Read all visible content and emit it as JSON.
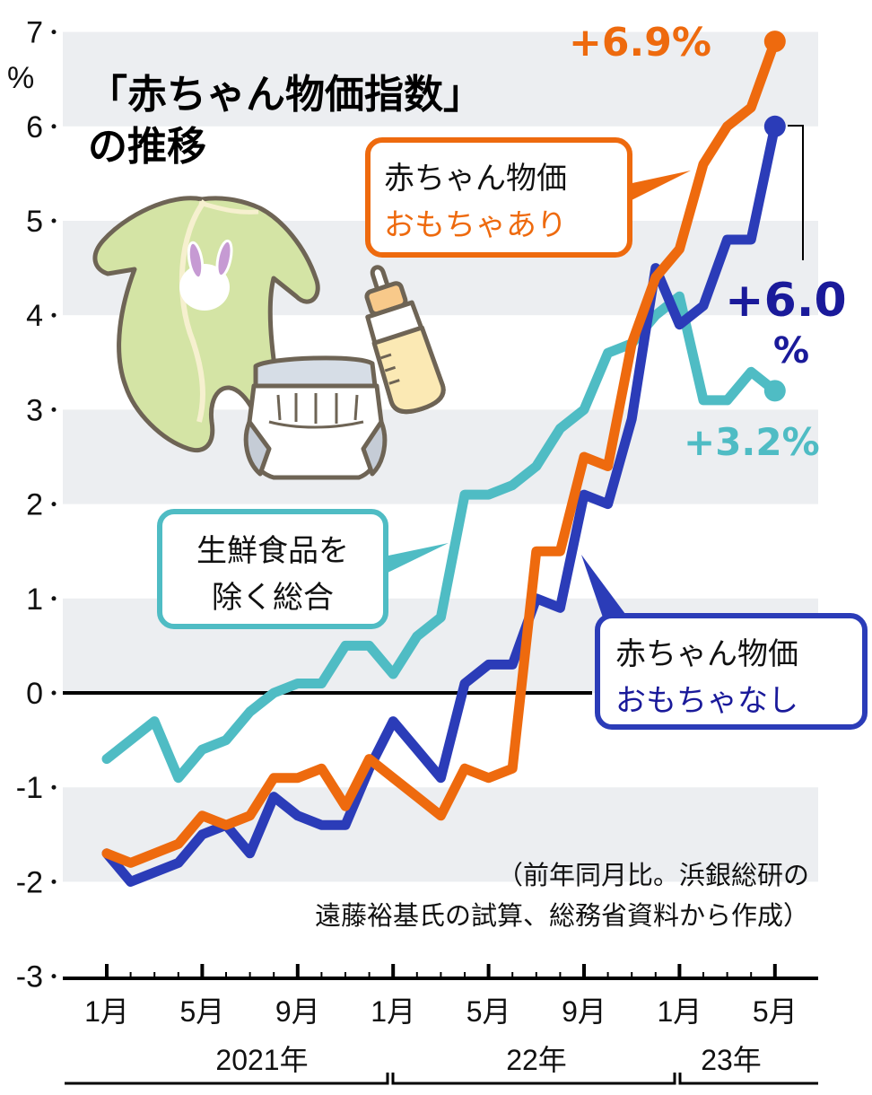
{
  "title": {
    "line1": "「赤ちゃん物価指数」",
    "line2": "の推移"
  },
  "y_unit": "%",
  "callouts": {
    "with_toys": {
      "line1": "赤ちゃん物価",
      "line2": "おもちゃあり"
    },
    "without_toys": {
      "line1": "赤ちゃん物価",
      "line2": "おもちゃなし"
    },
    "core_cpi": {
      "line1": "生鮮食品を",
      "line2": "除く総合"
    }
  },
  "end_labels": {
    "with_toys": "+6.9%",
    "without_toys_value": "+6.0",
    "without_toys_unit": "%",
    "core_cpi": "+3.2%"
  },
  "note": {
    "line1": "（前年同月比。浜銀総研の",
    "line2": "遠藤裕基氏の試算、総務省資料から作成）"
  },
  "x_axis": {
    "month_labels": [
      "1月",
      "5月",
      "9月",
      "1月",
      "5月",
      "9月",
      "1月",
      "5月"
    ],
    "year_labels": [
      "2021年",
      "22年",
      "23年"
    ]
  },
  "illustration": {
    "items": [
      "baby-romper-icon",
      "diaper-icon",
      "baby-bottle-icon"
    ]
  },
  "colors": {
    "with_toys": "#ee6a0e",
    "without_toys": "#2b3cb8",
    "without_toys_text": "#1a1a9a",
    "core_cpi": "#4fbcc4",
    "band": "#eceef1",
    "axis": "#000000"
  },
  "chart_data": {
    "type": "line",
    "title": "「赤ちゃん物価指数」の推移",
    "xlabel": "",
    "ylabel": "%",
    "ylim": [
      -3,
      7
    ],
    "yticks": [
      7,
      6,
      5,
      4,
      3,
      2,
      1,
      0,
      -1,
      -2,
      -3
    ],
    "grid": "alternating horizontal bands",
    "legend": "inline callouts",
    "x": [
      "2021-01",
      "2021-02",
      "2021-03",
      "2021-04",
      "2021-05",
      "2021-06",
      "2021-07",
      "2021-08",
      "2021-09",
      "2021-10",
      "2021-11",
      "2021-12",
      "2022-01",
      "2022-02",
      "2022-03",
      "2022-04",
      "2022-05",
      "2022-06",
      "2022-07",
      "2022-08",
      "2022-09",
      "2022-10",
      "2022-11",
      "2022-12",
      "2023-01",
      "2023-02",
      "2023-03",
      "2023-04",
      "2023-05"
    ],
    "series": [
      {
        "name": "赤ちゃん物価 おもちゃあり",
        "values": [
          -1.7,
          -1.8,
          -1.7,
          -1.6,
          -1.3,
          -1.4,
          -1.3,
          -0.9,
          -0.9,
          -0.8,
          -1.2,
          -0.7,
          -0.9,
          -1.1,
          -1.3,
          -0.8,
          -0.9,
          -0.8,
          1.5,
          1.5,
          2.5,
          2.4,
          3.7,
          4.4,
          4.7,
          5.6,
          6.0,
          6.2,
          6.9
        ]
      },
      {
        "name": "赤ちゃん物価 おもちゃなし",
        "values": [
          -1.7,
          -2.0,
          -1.9,
          -1.8,
          -1.5,
          -1.4,
          -1.7,
          -1.1,
          -1.3,
          -1.4,
          -1.4,
          -0.8,
          -0.3,
          -0.6,
          -0.9,
          0.1,
          0.3,
          0.3,
          1.0,
          0.9,
          2.1,
          2.0,
          2.9,
          4.5,
          3.9,
          4.1,
          4.8,
          4.8,
          6.0
        ]
      },
      {
        "name": "生鮮食品を除く総合",
        "values": [
          -0.7,
          -0.5,
          -0.3,
          -0.9,
          -0.6,
          -0.5,
          -0.2,
          0.0,
          0.1,
          0.1,
          0.5,
          0.5,
          0.2,
          0.6,
          0.8,
          2.1,
          2.1,
          2.2,
          2.4,
          2.8,
          3.0,
          3.6,
          3.7,
          4.0,
          4.2,
          3.1,
          3.1,
          3.4,
          3.2
        ]
      }
    ],
    "annotations": [
      "+6.9%",
      "+6.0%",
      "+3.2%",
      "前年同月比。浜銀総研の遠藤裕基氏の試算、総務省資料から作成"
    ]
  }
}
